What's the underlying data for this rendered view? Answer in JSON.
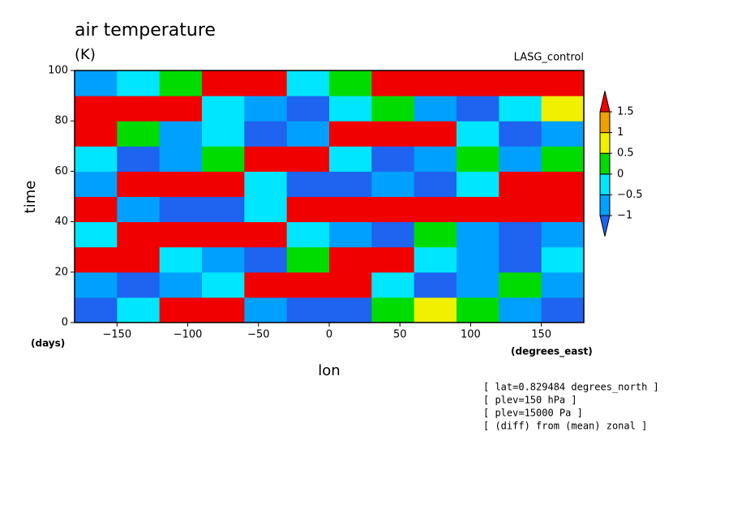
{
  "chart_data": {
    "type": "contour",
    "title": "air temperature",
    "units": "(K)",
    "dataset": "LASG_control",
    "y_label": "time",
    "x_label": "lon",
    "y_units": "(days)",
    "x_units": "(degrees_east)",
    "notes": [
      "[ lat=0.829484 degrees_north ]",
      "[ plev=150 hPa ]",
      "[ plev=15000 Pa ]",
      "[ (diff) from (mean) zonal ]"
    ],
    "xlim": [
      -180,
      180
    ],
    "ylim": [
      0,
      100
    ],
    "xticks": [
      {
        "value": -150,
        "label": "−150"
      },
      {
        "value": -100,
        "label": "−100"
      },
      {
        "value": -50,
        "label": "−50"
      },
      0,
      50,
      100,
      150
    ],
    "yticks": [
      0,
      20,
      40,
      60,
      80,
      100
    ],
    "levels": [
      {
        "value": -1,
        "label": "−1"
      },
      {
        "value": -0.5,
        "label": "−0.5"
      },
      0,
      0.5,
      1,
      1.5
    ],
    "colors": [
      "#1e64f0",
      "#00a0ff",
      "#00e6ff",
      "#00dc00",
      "#f0f000",
      "#f0a000",
      "#f00000"
    ],
    "x": [
      -165,
      -135,
      -105,
      -75,
      -45,
      -15,
      15,
      45,
      75,
      105,
      135,
      165
    ],
    "y": [
      5,
      15,
      25,
      35,
      45,
      55,
      65,
      75,
      85,
      95
    ],
    "z": [
      [
        -1.2,
        -0.2,
        1.7,
        1.7,
        -0.7,
        -1.2,
        -1.2,
        0.3,
        0.7,
        0.3,
        -0.7,
        -1.2
      ],
      [
        -0.7,
        -1.2,
        -0.7,
        -0.2,
        1.7,
        1.7,
        1.7,
        -0.2,
        -1.2,
        -0.7,
        0.3,
        -0.7
      ],
      [
        1.7,
        1.7,
        -0.2,
        -0.7,
        -1.2,
        0.3,
        1.7,
        1.7,
        -0.2,
        -0.7,
        -1.2,
        -0.2
      ],
      [
        -0.2,
        1.7,
        1.7,
        1.7,
        1.7,
        -0.2,
        -0.7,
        -1.2,
        0.3,
        -0.7,
        -1.2,
        -0.7
      ],
      [
        1.7,
        -0.7,
        -1.2,
        -1.2,
        -0.2,
        1.7,
        1.7,
        1.7,
        1.7,
        1.7,
        1.7,
        1.7
      ],
      [
        -0.7,
        1.7,
        1.7,
        1.7,
        -0.2,
        -1.2,
        -1.2,
        -0.7,
        -1.2,
        -0.2,
        1.7,
        1.7
      ],
      [
        -0.2,
        -1.2,
        -0.7,
        0.3,
        1.7,
        1.7,
        -0.2,
        -1.2,
        -0.7,
        0.3,
        -0.7,
        0.3
      ],
      [
        1.7,
        0.3,
        -0.7,
        -0.2,
        -1.2,
        -0.7,
        1.7,
        1.7,
        1.7,
        -0.2,
        -1.2,
        -0.7
      ],
      [
        1.7,
        1.7,
        1.7,
        -0.2,
        -0.7,
        -1.2,
        -0.2,
        0.3,
        -0.7,
        -1.2,
        -0.2,
        0.7
      ],
      [
        -0.7,
        -0.2,
        0.3,
        1.7,
        1.7,
        -0.2,
        0.3,
        1.7,
        1.7,
        1.7,
        1.7,
        1.7
      ]
    ]
  }
}
